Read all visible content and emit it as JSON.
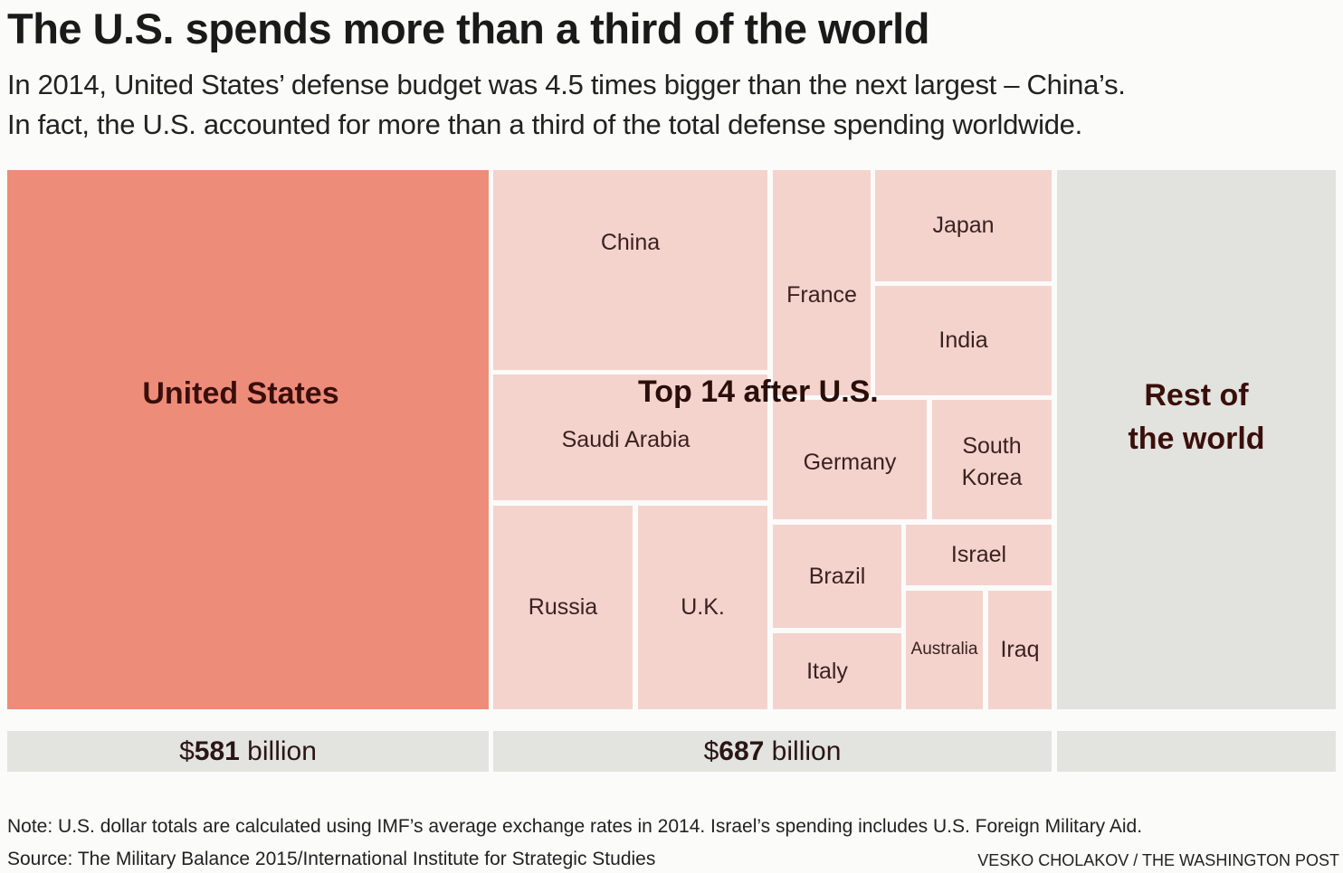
{
  "chart_data": {
    "type": "treemap",
    "title": "The U.S. spends more than a third of the world",
    "subtitle": [
      "In 2014, United States’ defense budget was 4.5 times bigger than the next largest – China’s.",
      "In fact, the U.S. accounted for more than a third of the total defense spending worldwide."
    ],
    "groups": [
      {
        "label": "United States",
        "total_label": {
          "prefix": "$",
          "value": "581",
          "suffix": " billion"
        },
        "value_billion_usd": 581,
        "color": "#ee8c7a"
      },
      {
        "label": "Top 14 after U.S.",
        "total_label": {
          "prefix": "$",
          "value": "687",
          "suffix": " billion"
        },
        "value_billion_usd": 687,
        "color": "#f4d3cd",
        "children": [
          "China",
          "Saudi Arabia",
          "Russia",
          "U.K.",
          "France",
          "Japan",
          "India",
          "Germany",
          "South Korea",
          "Brazil",
          "Italy",
          "Israel",
          "Australia",
          "Iraq"
        ]
      },
      {
        "label": "Rest of the world",
        "label_lines": [
          "Rest of",
          "the world"
        ],
        "color": "#e2e2de"
      }
    ]
  },
  "footer": {
    "note": "Note: U.S. dollar totals are calculated using IMF’s average exchange rates in 2014. Israel’s spending includes U.S. Foreign Military Aid.",
    "source": "Source: The Military Balance 2015/International Institute for Strategic Studies",
    "credit": "VESKO CHOLAKOV / THE WASHINGTON POST"
  }
}
